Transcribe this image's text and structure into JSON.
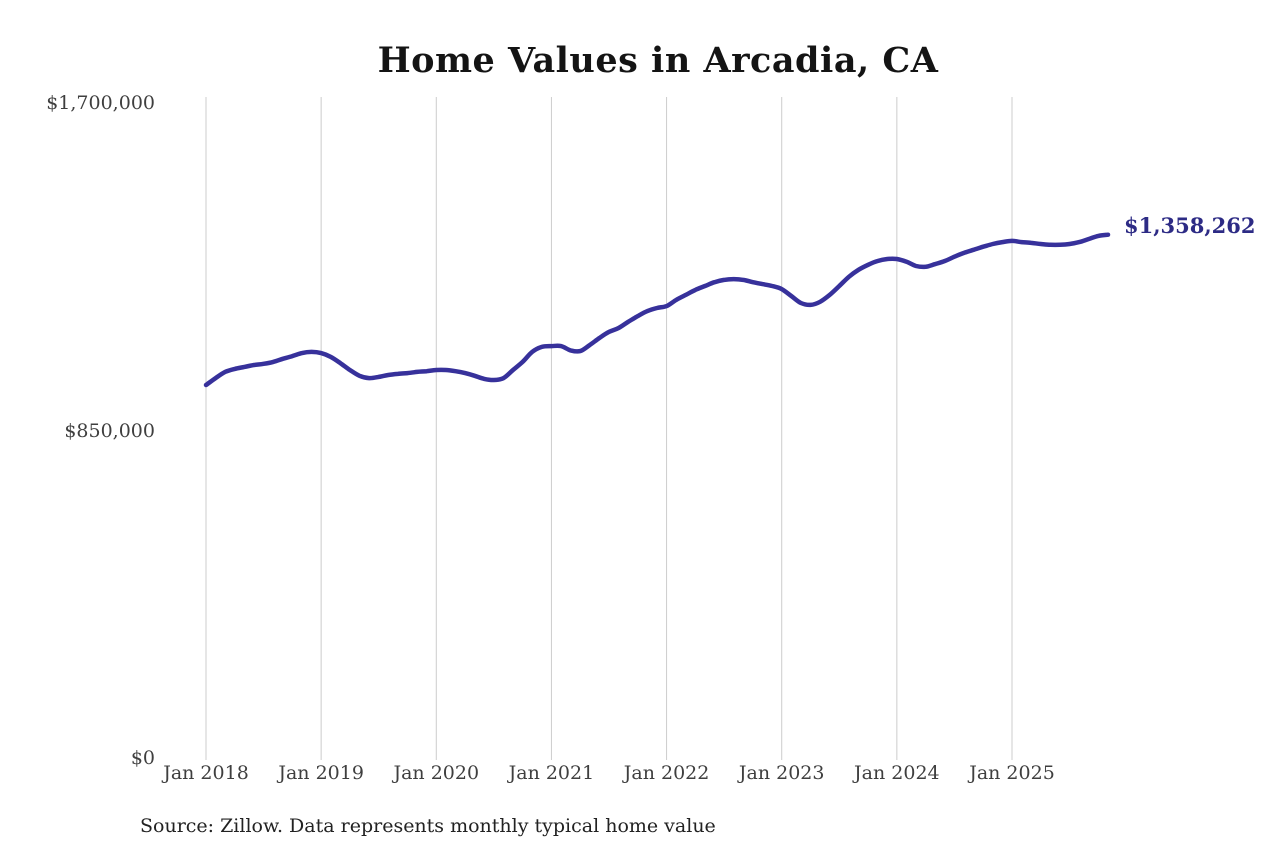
{
  "chart": {
    "title": "Home Values in Arcadia, CA",
    "annotation": "$1,358,262",
    "source": "Source: Zillow. Data represents monthly typical home value",
    "colors": {
      "line": "#37319b",
      "annotation": "#2d2b85",
      "grid": "#cccccc",
      "title": "#141414",
      "axis_text": "#3f3f3f",
      "source_text": "#222222"
    }
  },
  "chart_data": {
    "type": "line",
    "title": "Home Values in Arcadia, CA",
    "xlabel": "",
    "ylabel": "",
    "ylim": [
      0,
      1700000
    ],
    "grid": "vertical-only",
    "legend": "none",
    "y_ticks": [
      {
        "label": "$1,700,000",
        "value": 1700000
      },
      {
        "label": "$850,000",
        "value": 850000
      },
      {
        "label": "$0",
        "value": 0
      }
    ],
    "x_ticks": [
      {
        "label": "Jan 2018",
        "month_index": 0
      },
      {
        "label": "Jan 2019",
        "month_index": 12
      },
      {
        "label": "Jan 2020",
        "month_index": 24
      },
      {
        "label": "Jan 2021",
        "month_index": 36
      },
      {
        "label": "Jan 2022",
        "month_index": 48
      },
      {
        "label": "Jan 2023",
        "month_index": 60
      },
      {
        "label": "Jan 2024",
        "month_index": 72
      },
      {
        "label": "Jan 2025",
        "month_index": 84
      }
    ],
    "x_start": "2018-01",
    "x_end": "2025-11",
    "x_unit": "month",
    "end_value": 1358262,
    "end_label": "$1,358,262",
    "series": [
      {
        "name": "Typical home value",
        "values": [
          968000,
          986000,
          1002000,
          1010000,
          1015000,
          1020000,
          1023000,
          1028000,
          1036000,
          1043000,
          1051000,
          1054000,
          1051000,
          1041000,
          1025000,
          1007000,
          992000,
          986000,
          989000,
          994000,
          997000,
          999000,
          1002000,
          1004000,
          1007000,
          1007000,
          1004000,
          999000,
          992000,
          984000,
          981000,
          986000,
          1007000,
          1028000,
          1054000,
          1067000,
          1069000,
          1069000,
          1058000,
          1056000,
          1072000,
          1090000,
          1106000,
          1116000,
          1132000,
          1147000,
          1160000,
          1168000,
          1173000,
          1189000,
          1202000,
          1215000,
          1225000,
          1235000,
          1241000,
          1243000,
          1241000,
          1235000,
          1230000,
          1225000,
          1217000,
          1199000,
          1181000,
          1176000,
          1184000,
          1202000,
          1225000,
          1249000,
          1267000,
          1280000,
          1290000,
          1295000,
          1295000,
          1288000,
          1277000,
          1275000,
          1282000,
          1290000,
          1301000,
          1311000,
          1319000,
          1327000,
          1334000,
          1339000,
          1342000,
          1339000,
          1337000,
          1334000,
          1332000,
          1332000,
          1334000,
          1339000,
          1347000,
          1355000,
          1358262
        ]
      }
    ]
  }
}
